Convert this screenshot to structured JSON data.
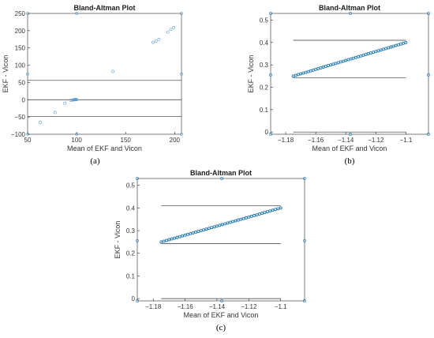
{
  "chart_data": [
    {
      "type": "scatter",
      "panel": "(a)",
      "title": "Bland-Altman Plot",
      "xlabel": "Mean of EKF and Vicon",
      "ylabel": "EKF - Vicon",
      "xlim": [
        50,
        207
      ],
      "ylim": [
        -100,
        250
      ],
      "xticks": [
        50,
        100,
        150,
        200
      ],
      "yticks": [
        -100,
        -50,
        0,
        50,
        100,
        150,
        200,
        250
      ],
      "hlines": [
        56,
        0,
        -49
      ],
      "marker_color": "#5b9bd5",
      "points": [
        [
          63,
          -66
        ],
        [
          78,
          -37
        ],
        [
          88,
          -10
        ],
        [
          94,
          -2
        ],
        [
          96,
          -1
        ],
        [
          97,
          0
        ],
        [
          97.5,
          0
        ],
        [
          98,
          0
        ],
        [
          98.5,
          0.5
        ],
        [
          99,
          1
        ],
        [
          99.5,
          0
        ],
        [
          100,
          0
        ],
        [
          137,
          82
        ],
        [
          178,
          166
        ],
        [
          181,
          170
        ],
        [
          184,
          175
        ],
        [
          193,
          196
        ],
        [
          196,
          204
        ],
        [
          199,
          209
        ]
      ],
      "edge_markers": [
        [
          50,
          250
        ],
        [
          50,
          74
        ],
        [
          50,
          -100
        ],
        [
          100,
          250
        ],
        [
          100,
          -100
        ],
        [
          207,
          250
        ],
        [
          207,
          74
        ],
        [
          207,
          -100
        ]
      ]
    },
    {
      "type": "scatter",
      "panel": "(b)",
      "title": "Bland-Altman Plot",
      "xlabel": "Mean of EKF and Vicon",
      "ylabel": "EKF - Vicon",
      "xlim": [
        -1.19,
        -1.085
      ],
      "ylim": [
        -0.01,
        0.53
      ],
      "xticks": [
        -1.18,
        -1.16,
        -1.14,
        -1.12,
        -1.1
      ],
      "yticks": [
        0,
        0.1,
        0.2,
        0.3,
        0.4,
        0.5
      ],
      "hlines": [
        0.41,
        0.243,
        0.0
      ],
      "hline_xrange": [
        -1.175,
        -1.1
      ],
      "marker_color": "#1f77b4",
      "line_segment": {
        "x": [
          -1.175,
          -1.1
        ],
        "y": [
          0.25,
          0.4
        ]
      },
      "edge_markers": [
        [
          -1.19,
          0.53
        ],
        [
          -1.19,
          0.255
        ],
        [
          -1.19,
          -0.01
        ],
        [
          -1.137,
          0.53
        ],
        [
          -1.137,
          -0.01
        ],
        [
          -1.085,
          0.53
        ],
        [
          -1.085,
          0.255
        ],
        [
          -1.085,
          -0.01
        ]
      ]
    },
    {
      "type": "scatter",
      "panel": "(c)",
      "title": "Bland-Altman Plot",
      "xlabel": "Mean of EKF and Vicon",
      "ylabel": "EKF - Vicon",
      "xlim": [
        -1.19,
        -1.085
      ],
      "ylim": [
        -0.01,
        0.53
      ],
      "xticks": [
        -1.18,
        -1.16,
        -1.14,
        -1.12,
        -1.1
      ],
      "yticks": [
        0,
        0.1,
        0.2,
        0.3,
        0.4,
        0.5
      ],
      "hlines": [
        0.41,
        0.243,
        0.0
      ],
      "hline_xrange": [
        -1.175,
        -1.1
      ],
      "marker_color": "#1f77b4",
      "line_segment": {
        "x": [
          -1.175,
          -1.1
        ],
        "y": [
          0.25,
          0.4
        ]
      },
      "edge_markers": [
        [
          -1.19,
          0.53
        ],
        [
          -1.19,
          0.255
        ],
        [
          -1.19,
          -0.01
        ],
        [
          -1.137,
          0.53
        ],
        [
          -1.137,
          -0.01
        ],
        [
          -1.085,
          0.53
        ],
        [
          -1.085,
          0.255
        ],
        [
          -1.085,
          -0.01
        ]
      ]
    }
  ]
}
